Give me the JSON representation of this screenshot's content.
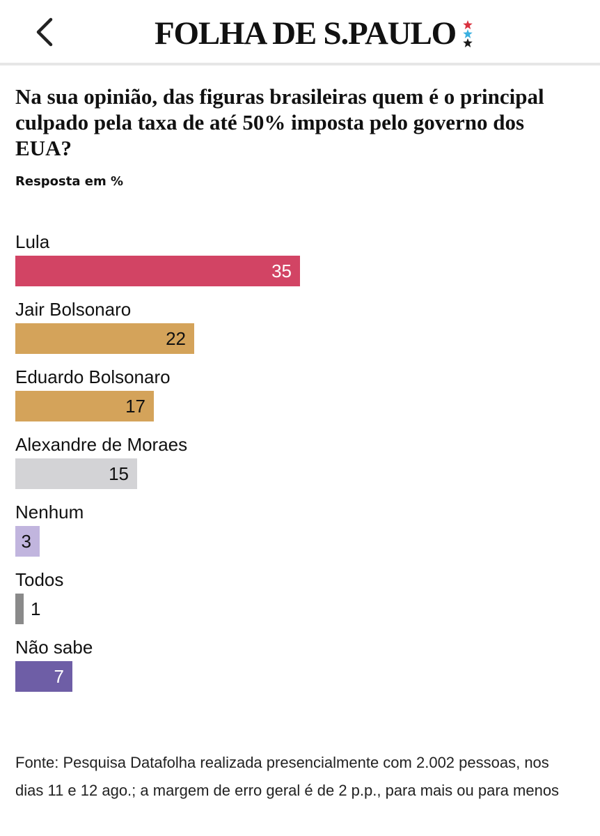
{
  "header": {
    "back_label": "Voltar",
    "logo_text": "FOLHA DE S.PAULO",
    "star_colors": [
      "#d9313e",
      "#3ab0e0",
      "#1a1a1a"
    ]
  },
  "chart_data": {
    "type": "bar",
    "orientation": "horizontal",
    "title": "Na sua opinião, das figuras brasileiras quem é o principal culpado pela taxa de até 50% imposta pelo governo dos EUA?",
    "subtitle": "Resposta em %",
    "categories": [
      "Lula",
      "Jair Bolsonaro",
      "Eduardo Bolsonaro",
      "Alexandre de Moraes",
      "Nenhum",
      "Todos",
      "Não sabe"
    ],
    "values": [
      35,
      22,
      17,
      15,
      3,
      1,
      7
    ],
    "colors": [
      "#d24464",
      "#d4a35a",
      "#d4a35a",
      "#d3d3d6",
      "#c1b5de",
      "#8a8a8a",
      "#6e5ea6"
    ],
    "text_colors": [
      "#ffffff",
      "#111111",
      "#111111",
      "#111111",
      "#111111",
      "#111111",
      "#ffffff"
    ],
    "xlim": [
      0,
      35
    ],
    "grid": false,
    "legend": "none"
  },
  "footer": {
    "source": "Fonte: Pesquisa Datafolha realizada presencialmente com 2.002 pessoas, nos dias 11 e 12 ago.; a margem de erro geral é de 2 p.p., para mais ou para menos"
  }
}
